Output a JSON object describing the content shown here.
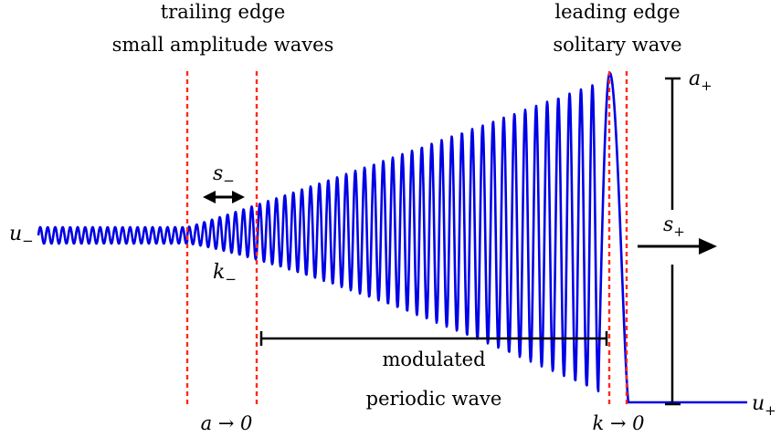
{
  "labels": {
    "trailing_edge": "trailing edge",
    "small_amplitude_waves": "small amplitude waves",
    "leading_edge": "leading edge",
    "solitary_wave": "solitary wave",
    "modulated": "modulated",
    "periodic_wave": "periodic wave",
    "a_to_0": "a → 0",
    "k_to_0": "k → 0"
  },
  "symbols": {
    "u_minus": {
      "base": "u",
      "sub": "−"
    },
    "u_plus": {
      "base": "u",
      "sub": "+"
    },
    "s_minus": {
      "base": "s",
      "sub": "−"
    },
    "s_plus": {
      "base": "s",
      "sub": "+"
    },
    "k_minus": {
      "base": "k",
      "sub": "−"
    },
    "a_plus": {
      "base": "a",
      "sub": "+"
    }
  },
  "colors": {
    "wave": "#0000e6",
    "edge_lines": "#ff2a1a",
    "annotation": "#000000"
  }
}
